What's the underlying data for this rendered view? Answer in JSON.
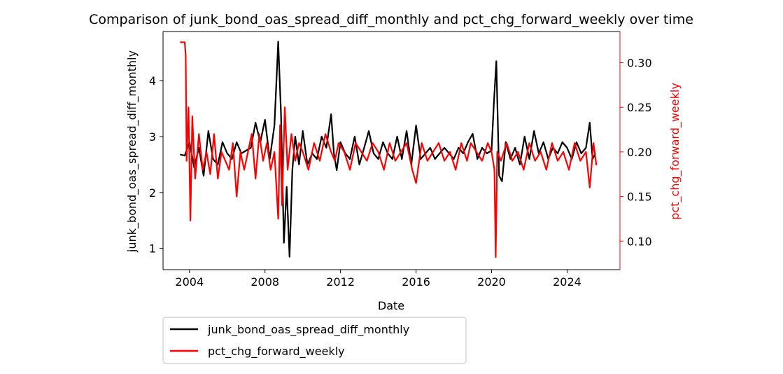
{
  "chart_data": {
    "type": "line",
    "title": "Comparison of junk_bond_oas_spread_diff_monthly and pct_chg_forward_weekly over time",
    "xlabel": "Date",
    "ylabel_left": "junk_bond_oas_spread_diff_monthly",
    "ylabel_right": "pct_chg_forward_weekly",
    "xlim": [
      2002.6,
      2026.8
    ],
    "ylim_left": [
      0.62,
      4.88
    ],
    "ylim_right": [
      0.068,
      0.335
    ],
    "x_ticks": [
      2004,
      2008,
      2012,
      2016,
      2020,
      2024
    ],
    "y_ticks_left": [
      1,
      2,
      3,
      4
    ],
    "y_ticks_right": [
      0.1,
      0.15,
      0.2,
      0.25,
      0.3
    ],
    "grid": false,
    "legend_position": "below-left",
    "colors": {
      "left": "#000000",
      "right": "#ff0000"
    },
    "series": [
      {
        "name": "junk_bond_oas_spread_diff_monthly",
        "axis": "left",
        "color": "#000000",
        "x": [
          2003.5,
          2003.75,
          2004.0,
          2004.25,
          2004.5,
          2004.75,
          2005.0,
          2005.25,
          2005.5,
          2005.75,
          2006.0,
          2006.25,
          2006.5,
          2006.75,
          2007.0,
          2007.25,
          2007.5,
          2007.75,
          2008.0,
          2008.25,
          2008.5,
          2008.7,
          2008.85,
          2009.0,
          2009.15,
          2009.3,
          2009.45,
          2009.6,
          2009.8,
          2010.0,
          2010.25,
          2010.5,
          2010.75,
          2011.0,
          2011.25,
          2011.5,
          2011.65,
          2011.8,
          2012.0,
          2012.25,
          2012.5,
          2012.75,
          2013.0,
          2013.25,
          2013.5,
          2013.75,
          2014.0,
          2014.25,
          2014.5,
          2014.75,
          2015.0,
          2015.25,
          2015.5,
          2015.75,
          2016.0,
          2016.25,
          2016.5,
          2016.75,
          2017.0,
          2017.25,
          2017.5,
          2017.75,
          2018.0,
          2018.25,
          2018.5,
          2018.75,
          2019.0,
          2019.25,
          2019.5,
          2019.75,
          2020.0,
          2020.12,
          2020.25,
          2020.4,
          2020.55,
          2020.75,
          2021.0,
          2021.25,
          2021.5,
          2021.75,
          2022.0,
          2022.25,
          2022.5,
          2022.75,
          2023.0,
          2023.25,
          2023.5,
          2023.75,
          2024.0,
          2024.25,
          2024.5,
          2024.75,
          2025.0,
          2025.2,
          2025.35,
          2025.5
        ],
        "values": [
          2.68,
          2.66,
          2.9,
          2.45,
          2.8,
          2.3,
          3.1,
          2.6,
          2.5,
          2.9,
          2.7,
          2.6,
          2.9,
          2.7,
          2.75,
          2.8,
          3.25,
          2.9,
          3.3,
          2.6,
          3.2,
          4.7,
          3.4,
          1.1,
          2.1,
          0.85,
          2.4,
          3.0,
          2.5,
          3.1,
          2.5,
          2.7,
          2.6,
          3.0,
          2.8,
          3.4,
          2.7,
          2.4,
          2.9,
          2.7,
          2.6,
          3.0,
          2.5,
          2.8,
          3.1,
          2.7,
          2.6,
          2.9,
          2.7,
          2.6,
          3.0,
          2.6,
          3.1,
          2.5,
          3.2,
          2.6,
          2.7,
          2.8,
          2.6,
          2.7,
          2.8,
          2.7,
          2.6,
          2.8,
          2.7,
          2.9,
          3.05,
          2.6,
          2.8,
          2.7,
          2.75,
          3.6,
          4.35,
          2.3,
          2.2,
          2.9,
          2.6,
          2.8,
          2.5,
          3.0,
          2.6,
          3.1,
          2.7,
          2.9,
          2.6,
          2.8,
          2.7,
          2.9,
          2.8,
          2.6,
          2.9,
          2.7,
          2.8,
          3.25,
          2.6,
          2.7
        ]
      },
      {
        "name": "pct_chg_forward_weekly",
        "axis": "right",
        "color": "#ff0000",
        "x": [
          2003.5,
          2003.75,
          2003.8,
          2003.85,
          2003.95,
          2004.05,
          2004.15,
          2004.3,
          2004.5,
          2004.7,
          2004.9,
          2005.1,
          2005.3,
          2005.5,
          2005.7,
          2005.9,
          2006.1,
          2006.3,
          2006.5,
          2006.7,
          2006.9,
          2007.1,
          2007.3,
          2007.5,
          2007.7,
          2007.9,
          2008.1,
          2008.3,
          2008.5,
          2008.7,
          2008.8,
          2008.9,
          2009.05,
          2009.2,
          2009.4,
          2009.6,
          2009.8,
          2010.0,
          2010.3,
          2010.6,
          2010.9,
          2011.2,
          2011.5,
          2011.7,
          2011.9,
          2012.2,
          2012.5,
          2012.8,
          2013.1,
          2013.4,
          2013.7,
          2014.0,
          2014.3,
          2014.6,
          2014.9,
          2015.2,
          2015.5,
          2015.8,
          2016.0,
          2016.3,
          2016.6,
          2016.9,
          2017.2,
          2017.5,
          2017.8,
          2018.1,
          2018.4,
          2018.7,
          2018.9,
          2019.2,
          2019.5,
          2019.8,
          2020.0,
          2020.15,
          2020.22,
          2020.3,
          2020.5,
          2020.8,
          2021.1,
          2021.4,
          2021.7,
          2022.0,
          2022.3,
          2022.6,
          2022.9,
          2023.2,
          2023.5,
          2023.8,
          2024.1,
          2024.4,
          2024.7,
          2025.0,
          2025.2,
          2025.4,
          2025.55
        ],
        "values": [
          0.323,
          0.323,
          0.308,
          0.19,
          0.25,
          0.123,
          0.24,
          0.17,
          0.22,
          0.18,
          0.2,
          0.175,
          0.22,
          0.17,
          0.2,
          0.19,
          0.18,
          0.21,
          0.15,
          0.2,
          0.18,
          0.2,
          0.22,
          0.17,
          0.22,
          0.19,
          0.21,
          0.18,
          0.2,
          0.125,
          0.23,
          0.14,
          0.25,
          0.18,
          0.22,
          0.19,
          0.21,
          0.2,
          0.18,
          0.21,
          0.19,
          0.22,
          0.2,
          0.19,
          0.21,
          0.2,
          0.18,
          0.21,
          0.2,
          0.19,
          0.21,
          0.2,
          0.18,
          0.21,
          0.19,
          0.2,
          0.21,
          0.18,
          0.165,
          0.21,
          0.19,
          0.2,
          0.21,
          0.19,
          0.2,
          0.18,
          0.21,
          0.19,
          0.21,
          0.2,
          0.19,
          0.21,
          0.2,
          0.18,
          0.082,
          0.2,
          0.19,
          0.21,
          0.19,
          0.2,
          0.18,
          0.21,
          0.19,
          0.2,
          0.18,
          0.21,
          0.19,
          0.2,
          0.18,
          0.21,
          0.19,
          0.2,
          0.16,
          0.21,
          0.185
        ]
      }
    ]
  }
}
